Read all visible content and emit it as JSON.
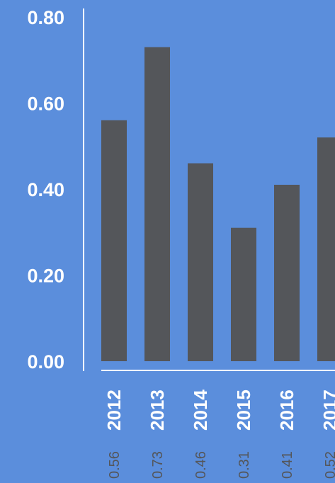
{
  "chart_data": {
    "type": "bar",
    "categories": [
      "2012",
      "2013",
      "2014",
      "2015",
      "2016",
      "2017"
    ],
    "values": [
      0.56,
      0.73,
      0.46,
      0.31,
      0.41,
      0.52
    ],
    "value_labels": [
      "0.56",
      "0.73",
      "0.46",
      "0.31",
      "0.41",
      "0.52"
    ],
    "yticks": [
      "0.00",
      "0.20",
      "0.40",
      "0.60",
      "0.80"
    ],
    "ylim": [
      0,
      0.8
    ],
    "grid": false,
    "colors": {
      "background": "#5b8edc",
      "bar": "#54565a",
      "axis": "#ffffff",
      "tick_text": "#ffffff",
      "value_text": "#54565a"
    }
  }
}
